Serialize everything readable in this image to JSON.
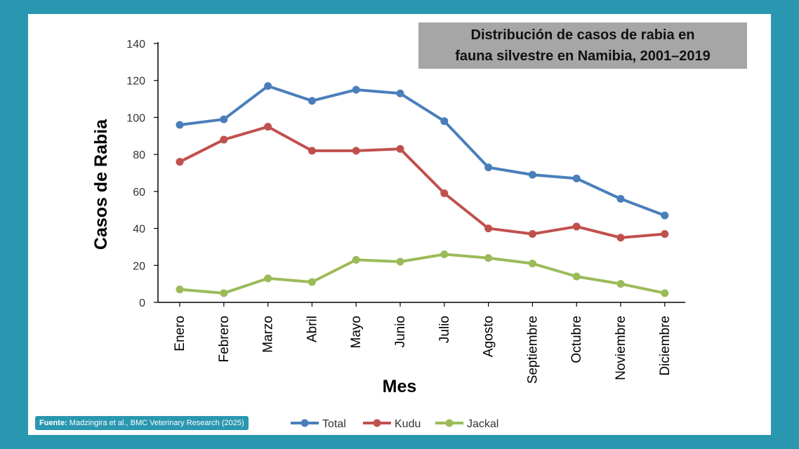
{
  "source": {
    "label": "Fuente:",
    "text": "Madzingira et al., BMC Veterinary Research (2025)"
  },
  "chart_data": {
    "type": "line",
    "title_lines": [
      "Distribución de casos de rabia en",
      "fauna silvestre en Namibia, 2001–2019"
    ],
    "xlabel": "Mes",
    "ylabel": "Casos de Rabia",
    "ylim": [
      0,
      140
    ],
    "yticks": [
      0,
      20,
      40,
      60,
      80,
      100,
      120,
      140
    ],
    "grid": false,
    "legend_position": "bottom",
    "categories": [
      "Enero",
      "Febrero",
      "Marzo",
      "Abril",
      "Mayo",
      "Junio",
      "Julio",
      "Agosto",
      "Septiembre",
      "Octubre",
      "Noviembre",
      "Diciembre"
    ],
    "series": [
      {
        "name": "Total",
        "color": "#4a7ebb",
        "values": [
          96,
          99,
          117,
          109,
          115,
          113,
          98,
          73,
          69,
          67,
          56,
          47
        ]
      },
      {
        "name": "Kudu",
        "color": "#c0504d",
        "values": [
          76,
          88,
          95,
          82,
          82,
          83,
          59,
          40,
          37,
          41,
          35,
          37
        ]
      },
      {
        "name": "Jackal",
        "color": "#9bbb59",
        "values": [
          7,
          5,
          13,
          11,
          23,
          22,
          26,
          24,
          21,
          14,
          10,
          5
        ]
      }
    ]
  }
}
